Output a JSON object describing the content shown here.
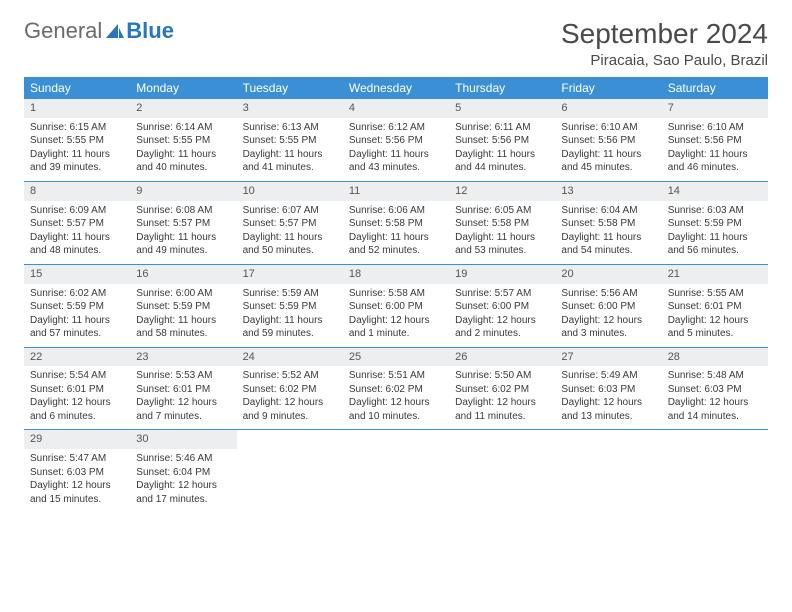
{
  "logo": {
    "text1": "General",
    "text2": "Blue"
  },
  "title": "September 2024",
  "location": "Piracaia, Sao Paulo, Brazil",
  "colors": {
    "header_bg": "#3b8fd4",
    "header_text": "#ffffff",
    "daynum_bg": "#eceeef",
    "border": "#3b8fd4",
    "logo_gray": "#6b6b6b",
    "logo_blue": "#2676c0"
  },
  "weekdays": [
    "Sunday",
    "Monday",
    "Tuesday",
    "Wednesday",
    "Thursday",
    "Friday",
    "Saturday"
  ],
  "weeks": [
    [
      {
        "n": "1",
        "sr": "Sunrise: 6:15 AM",
        "ss": "Sunset: 5:55 PM",
        "dl": "Daylight: 11 hours and 39 minutes."
      },
      {
        "n": "2",
        "sr": "Sunrise: 6:14 AM",
        "ss": "Sunset: 5:55 PM",
        "dl": "Daylight: 11 hours and 40 minutes."
      },
      {
        "n": "3",
        "sr": "Sunrise: 6:13 AM",
        "ss": "Sunset: 5:55 PM",
        "dl": "Daylight: 11 hours and 41 minutes."
      },
      {
        "n": "4",
        "sr": "Sunrise: 6:12 AM",
        "ss": "Sunset: 5:56 PM",
        "dl": "Daylight: 11 hours and 43 minutes."
      },
      {
        "n": "5",
        "sr": "Sunrise: 6:11 AM",
        "ss": "Sunset: 5:56 PM",
        "dl": "Daylight: 11 hours and 44 minutes."
      },
      {
        "n": "6",
        "sr": "Sunrise: 6:10 AM",
        "ss": "Sunset: 5:56 PM",
        "dl": "Daylight: 11 hours and 45 minutes."
      },
      {
        "n": "7",
        "sr": "Sunrise: 6:10 AM",
        "ss": "Sunset: 5:56 PM",
        "dl": "Daylight: 11 hours and 46 minutes."
      }
    ],
    [
      {
        "n": "8",
        "sr": "Sunrise: 6:09 AM",
        "ss": "Sunset: 5:57 PM",
        "dl": "Daylight: 11 hours and 48 minutes."
      },
      {
        "n": "9",
        "sr": "Sunrise: 6:08 AM",
        "ss": "Sunset: 5:57 PM",
        "dl": "Daylight: 11 hours and 49 minutes."
      },
      {
        "n": "10",
        "sr": "Sunrise: 6:07 AM",
        "ss": "Sunset: 5:57 PM",
        "dl": "Daylight: 11 hours and 50 minutes."
      },
      {
        "n": "11",
        "sr": "Sunrise: 6:06 AM",
        "ss": "Sunset: 5:58 PM",
        "dl": "Daylight: 11 hours and 52 minutes."
      },
      {
        "n": "12",
        "sr": "Sunrise: 6:05 AM",
        "ss": "Sunset: 5:58 PM",
        "dl": "Daylight: 11 hours and 53 minutes."
      },
      {
        "n": "13",
        "sr": "Sunrise: 6:04 AM",
        "ss": "Sunset: 5:58 PM",
        "dl": "Daylight: 11 hours and 54 minutes."
      },
      {
        "n": "14",
        "sr": "Sunrise: 6:03 AM",
        "ss": "Sunset: 5:59 PM",
        "dl": "Daylight: 11 hours and 56 minutes."
      }
    ],
    [
      {
        "n": "15",
        "sr": "Sunrise: 6:02 AM",
        "ss": "Sunset: 5:59 PM",
        "dl": "Daylight: 11 hours and 57 minutes."
      },
      {
        "n": "16",
        "sr": "Sunrise: 6:00 AM",
        "ss": "Sunset: 5:59 PM",
        "dl": "Daylight: 11 hours and 58 minutes."
      },
      {
        "n": "17",
        "sr": "Sunrise: 5:59 AM",
        "ss": "Sunset: 5:59 PM",
        "dl": "Daylight: 11 hours and 59 minutes."
      },
      {
        "n": "18",
        "sr": "Sunrise: 5:58 AM",
        "ss": "Sunset: 6:00 PM",
        "dl": "Daylight: 12 hours and 1 minute."
      },
      {
        "n": "19",
        "sr": "Sunrise: 5:57 AM",
        "ss": "Sunset: 6:00 PM",
        "dl": "Daylight: 12 hours and 2 minutes."
      },
      {
        "n": "20",
        "sr": "Sunrise: 5:56 AM",
        "ss": "Sunset: 6:00 PM",
        "dl": "Daylight: 12 hours and 3 minutes."
      },
      {
        "n": "21",
        "sr": "Sunrise: 5:55 AM",
        "ss": "Sunset: 6:01 PM",
        "dl": "Daylight: 12 hours and 5 minutes."
      }
    ],
    [
      {
        "n": "22",
        "sr": "Sunrise: 5:54 AM",
        "ss": "Sunset: 6:01 PM",
        "dl": "Daylight: 12 hours and 6 minutes."
      },
      {
        "n": "23",
        "sr": "Sunrise: 5:53 AM",
        "ss": "Sunset: 6:01 PM",
        "dl": "Daylight: 12 hours and 7 minutes."
      },
      {
        "n": "24",
        "sr": "Sunrise: 5:52 AM",
        "ss": "Sunset: 6:02 PM",
        "dl": "Daylight: 12 hours and 9 minutes."
      },
      {
        "n": "25",
        "sr": "Sunrise: 5:51 AM",
        "ss": "Sunset: 6:02 PM",
        "dl": "Daylight: 12 hours and 10 minutes."
      },
      {
        "n": "26",
        "sr": "Sunrise: 5:50 AM",
        "ss": "Sunset: 6:02 PM",
        "dl": "Daylight: 12 hours and 11 minutes."
      },
      {
        "n": "27",
        "sr": "Sunrise: 5:49 AM",
        "ss": "Sunset: 6:03 PM",
        "dl": "Daylight: 12 hours and 13 minutes."
      },
      {
        "n": "28",
        "sr": "Sunrise: 5:48 AM",
        "ss": "Sunset: 6:03 PM",
        "dl": "Daylight: 12 hours and 14 minutes."
      }
    ],
    [
      {
        "n": "29",
        "sr": "Sunrise: 5:47 AM",
        "ss": "Sunset: 6:03 PM",
        "dl": "Daylight: 12 hours and 15 minutes."
      },
      {
        "n": "30",
        "sr": "Sunrise: 5:46 AM",
        "ss": "Sunset: 6:04 PM",
        "dl": "Daylight: 12 hours and 17 minutes."
      },
      null,
      null,
      null,
      null,
      null
    ]
  ]
}
